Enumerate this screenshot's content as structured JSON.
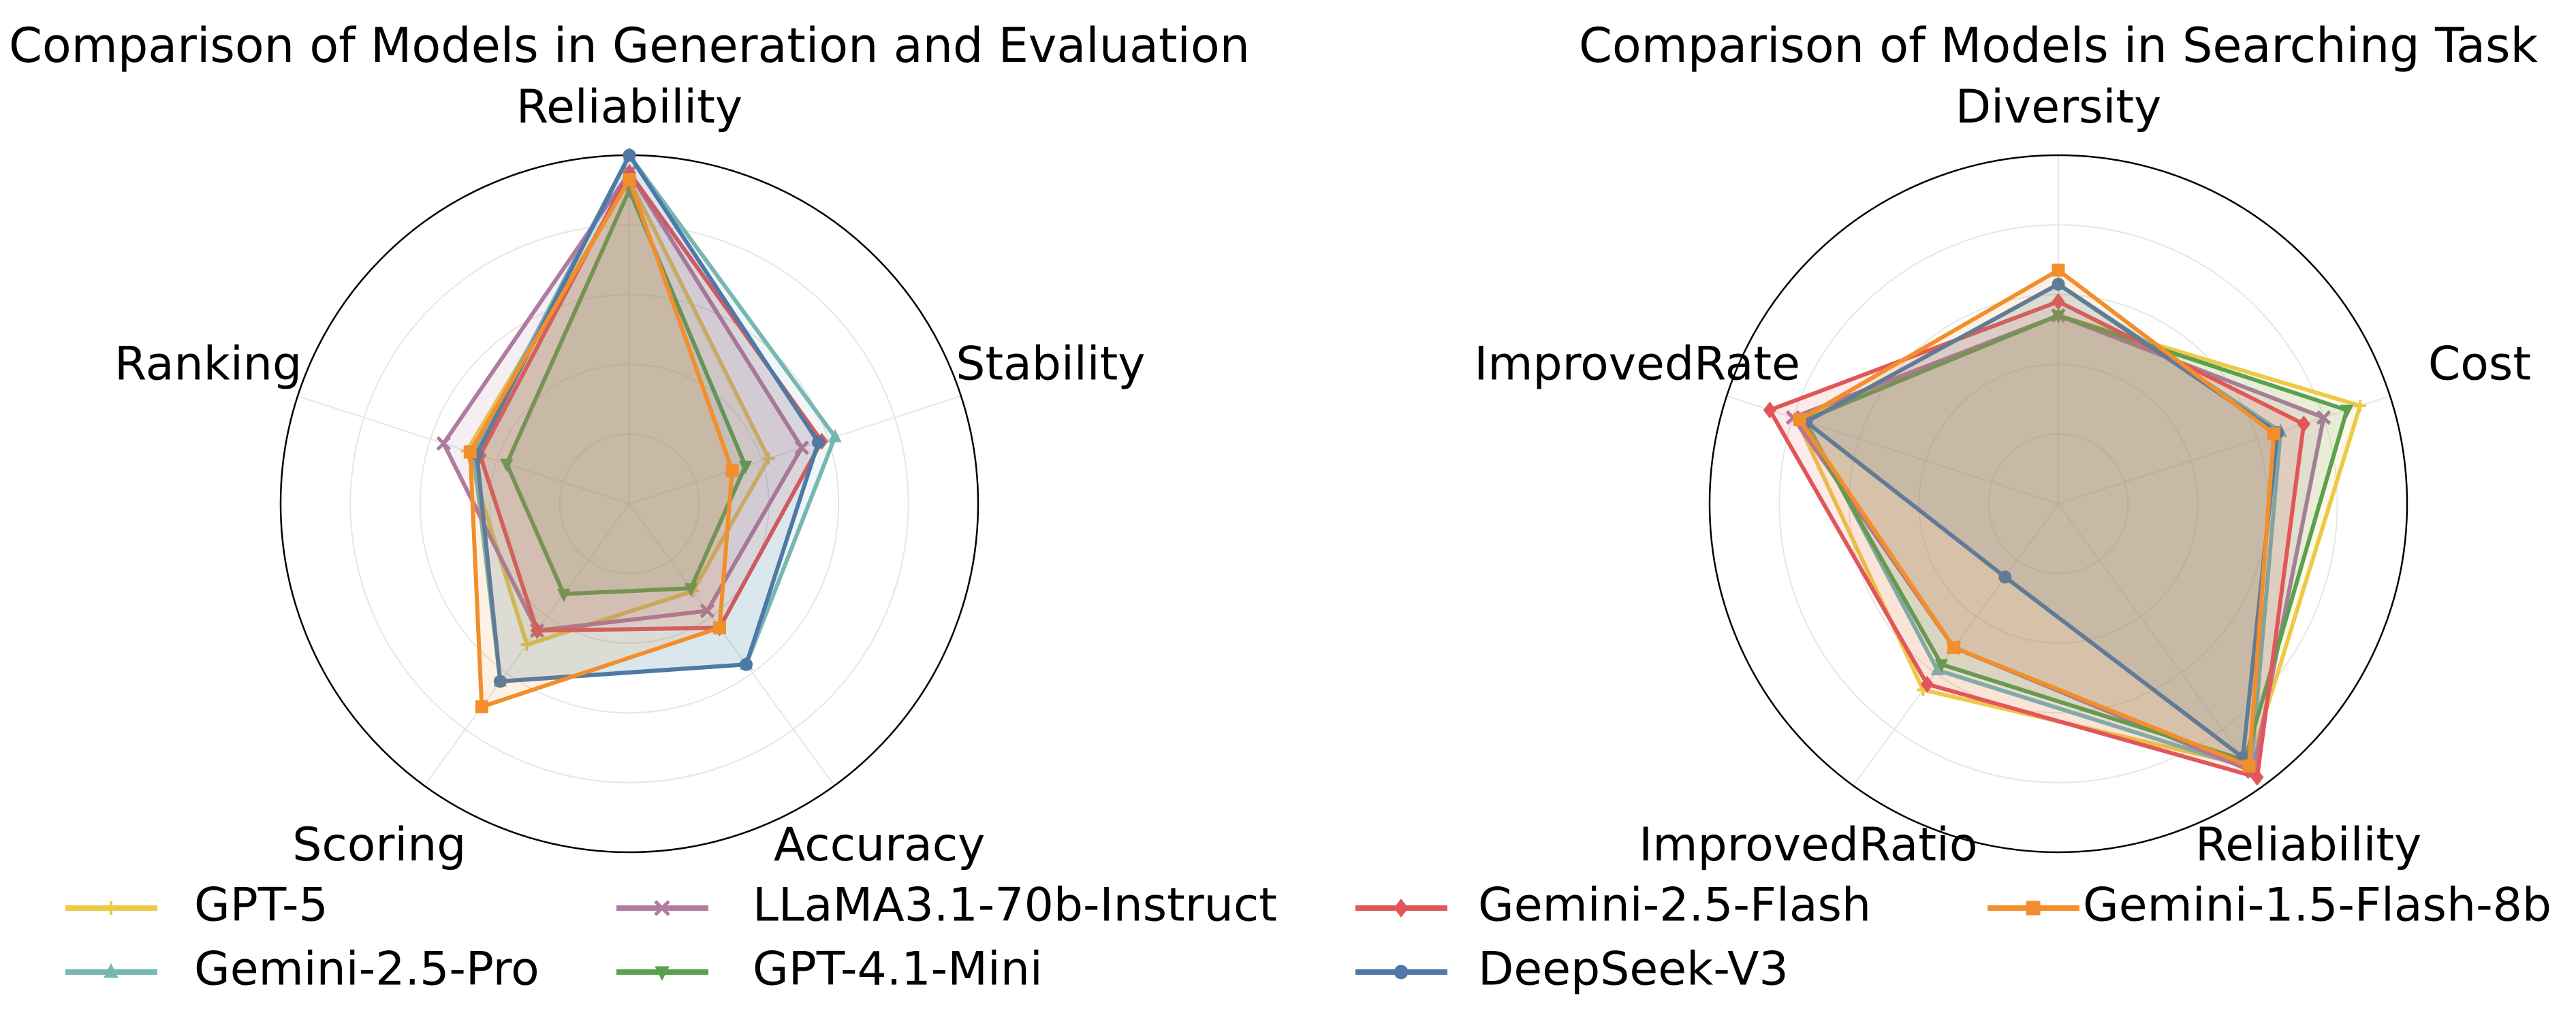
{
  "chart_data": [
    {
      "type": "radar",
      "title": "Comparison of Models in Generation and Evaluation",
      "axes": [
        "Reliability",
        "Stability",
        "Accuracy",
        "Scoring",
        "Ranking"
      ],
      "rlim": [
        0,
        1
      ],
      "grid": true,
      "series": [
        {
          "name": "GPT-5",
          "color": "#edc948",
          "marker": "plus",
          "values": [
            0.93,
            0.42,
            0.31,
            0.5,
            0.49
          ]
        },
        {
          "name": "Gemini-2.5-Pro",
          "color": "#76b7b2",
          "marker": "triangle-up",
          "values": [
            1.0,
            0.62,
            0.57,
            0.63,
            0.47
          ]
        },
        {
          "name": "LLaMA3.1-70b-Instruct",
          "color": "#b07aa1",
          "marker": "x",
          "values": [
            0.95,
            0.52,
            0.38,
            0.45,
            0.56
          ]
        },
        {
          "name": "GPT-4.1-Mini",
          "color": "#59a14f",
          "marker": "triangle-down",
          "values": [
            0.9,
            0.35,
            0.3,
            0.32,
            0.37
          ]
        },
        {
          "name": "Gemini-2.5-Flash",
          "color": "#e15759",
          "marker": "diamond",
          "values": [
            0.95,
            0.58,
            0.44,
            0.45,
            0.45
          ]
        },
        {
          "name": "DeepSeek-V3",
          "color": "#4e79a7",
          "marker": "circle",
          "values": [
            1.0,
            0.57,
            0.57,
            0.63,
            0.46
          ]
        },
        {
          "name": "Gemini-1.5-Flash-8b",
          "color": "#f28e2b",
          "marker": "square",
          "values": [
            0.93,
            0.31,
            0.44,
            0.72,
            0.48
          ]
        }
      ]
    },
    {
      "type": "radar",
      "title": "Comparison of Models in Searching Task",
      "axes": [
        "Diversity",
        "Cost",
        "Reliability",
        "ImprovedRatio",
        "ImprovedRate"
      ],
      "rlim": [
        0,
        1
      ],
      "grid": true,
      "series": [
        {
          "name": "GPT-5",
          "color": "#edc948",
          "marker": "plus",
          "values": [
            0.54,
            0.91,
            0.93,
            0.66,
            0.79
          ]
        },
        {
          "name": "Gemini-2.5-Pro",
          "color": "#76b7b2",
          "marker": "triangle-up",
          "values": [
            0.63,
            0.67,
            0.94,
            0.59,
            0.76
          ]
        },
        {
          "name": "LLaMA3.1-70b-Instruct",
          "color": "#b07aa1",
          "marker": "x",
          "values": [
            0.54,
            0.8,
            0.95,
            0.51,
            0.8
          ]
        },
        {
          "name": "GPT-4.1-Mini",
          "color": "#59a14f",
          "marker": "triangle-down",
          "values": [
            0.54,
            0.87,
            0.91,
            0.57,
            0.77
          ]
        },
        {
          "name": "Gemini-2.5-Flash",
          "color": "#e15759",
          "marker": "diamond",
          "values": [
            0.58,
            0.74,
            0.97,
            0.64,
            0.87
          ]
        },
        {
          "name": "DeepSeek-V3",
          "color": "#4e79a7",
          "marker": "circle",
          "values": [
            0.63,
            0.66,
            0.9,
            0.26,
            0.76
          ]
        },
        {
          "name": "Gemini-1.5-Flash-8b",
          "color": "#f28e2b",
          "marker": "square",
          "values": [
            0.67,
            0.65,
            0.93,
            0.51,
            0.78
          ]
        }
      ]
    }
  ],
  "legend": {
    "placement": "bottom",
    "items": [
      "GPT-5",
      "Gemini-2.5-Pro",
      "LLaMA3.1-70b-Instruct",
      "GPT-4.1-Mini",
      "Gemini-2.5-Flash",
      "DeepSeek-V3",
      "Gemini-1.5-Flash-8b"
    ]
  }
}
